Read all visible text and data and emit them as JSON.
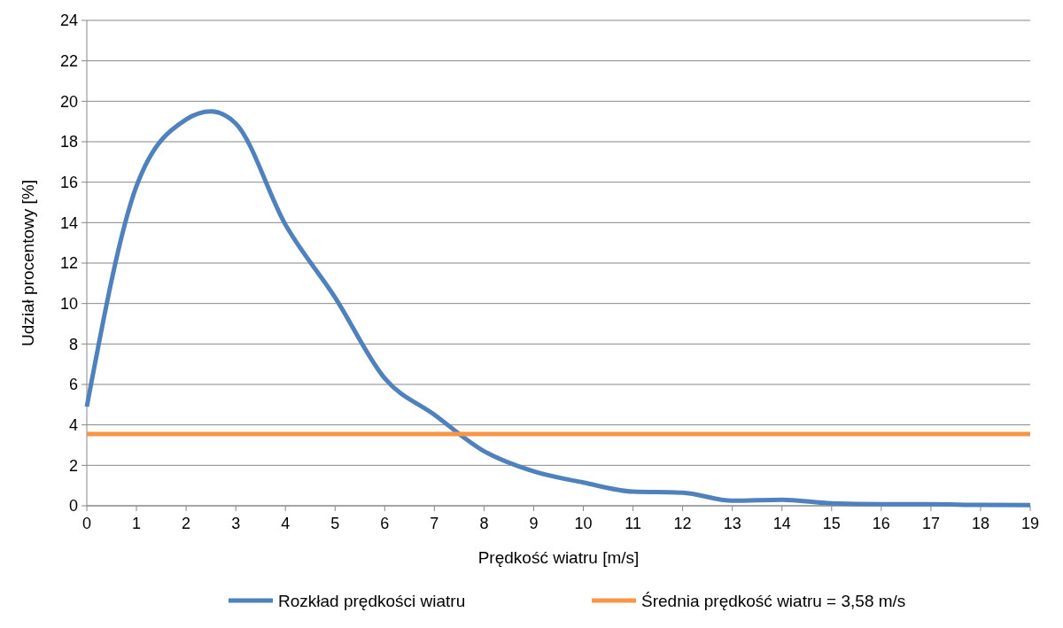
{
  "chart_data": {
    "type": "line",
    "xlabel": "Prędkość wiatru [m/s]",
    "ylabel": "Udział procentowy [%]",
    "series": [
      {
        "name": "Rozkład prędkości wiatru",
        "color": "#4f81bd",
        "x": [
          0,
          1,
          2,
          2.5,
          3,
          4,
          5,
          6,
          7,
          8,
          9,
          10,
          11,
          12,
          13,
          14,
          15,
          16,
          17,
          18,
          19
        ],
        "values": [
          4.9,
          15.8,
          19.1,
          19.5,
          18.9,
          13.9,
          10.3,
          6.3,
          4.5,
          2.7,
          1.7,
          1.15,
          0.7,
          0.65,
          0.25,
          0.3,
          0.12,
          0.08,
          0.08,
          0.04,
          0.03
        ]
      },
      {
        "name": "Średnia prędkość wiatru = 3,58 m/s",
        "color": "#f79646",
        "x": [
          0,
          19
        ],
        "values": [
          3.55,
          3.55
        ]
      }
    ],
    "xlim": [
      0,
      19
    ],
    "xticks": [
      0,
      1,
      2,
      3,
      4,
      5,
      6,
      7,
      8,
      9,
      10,
      11,
      12,
      13,
      14,
      15,
      16,
      17,
      18,
      19
    ],
    "ylim": [
      0,
      24
    ],
    "yticks": [
      0,
      2,
      4,
      6,
      8,
      10,
      12,
      14,
      16,
      18,
      20,
      22,
      24
    ],
    "grid": "y",
    "legend": "bottom",
    "marker": "none",
    "line_style": "solid"
  }
}
